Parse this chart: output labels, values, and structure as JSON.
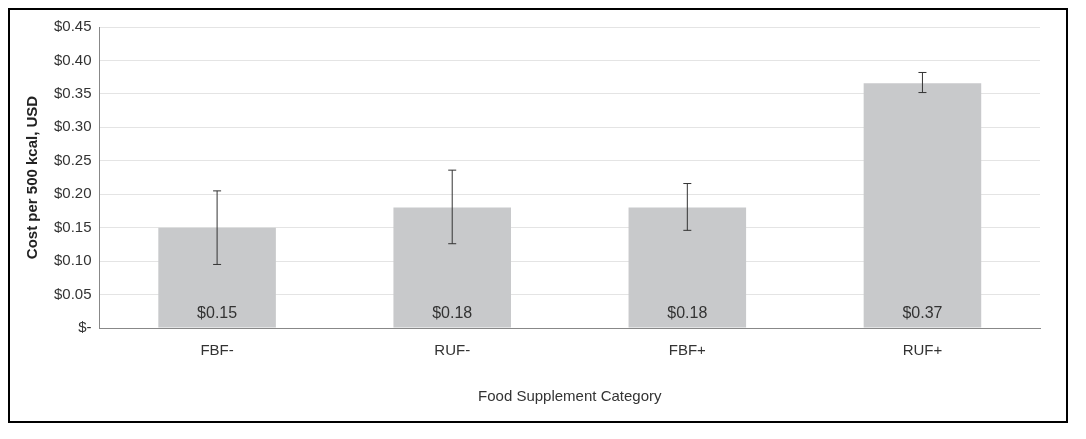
{
  "chart_data": {
    "type": "bar",
    "xlabel": "Food Supplement Category",
    "ylabel": "Cost per 500 kcal, USD",
    "categories": [
      "FBF-",
      "RUF-",
      "FBF+",
      "RUF+"
    ],
    "values": [
      0.15,
      0.18,
      0.18,
      0.366
    ],
    "value_labels": [
      "$0.15",
      "$0.18",
      "$0.18",
      "$0.37"
    ],
    "errors": [
      [
        0.095,
        0.205
      ],
      [
        0.126,
        0.236
      ],
      [
        0.146,
        0.216
      ],
      [
        0.352,
        0.382
      ]
    ],
    "color": "#c8c9cb",
    "ylim": [
      0,
      0.45
    ],
    "yticks": [
      {
        "value": 0,
        "label": "$-"
      },
      {
        "value": 0.05,
        "label": "$0.05"
      },
      {
        "value": 0.1,
        "label": "$0.10"
      },
      {
        "value": 0.15,
        "label": "$0.15"
      },
      {
        "value": 0.2,
        "label": "$0.20"
      },
      {
        "value": 0.25,
        "label": "$0.25"
      },
      {
        "value": 0.3,
        "label": "$0.30"
      },
      {
        "value": 0.35,
        "label": "$0.35"
      },
      {
        "value": 0.4,
        "label": "$0.40"
      },
      {
        "value": 0.45,
        "label": "$0.45"
      }
    ],
    "grid": "y",
    "legend": false
  }
}
